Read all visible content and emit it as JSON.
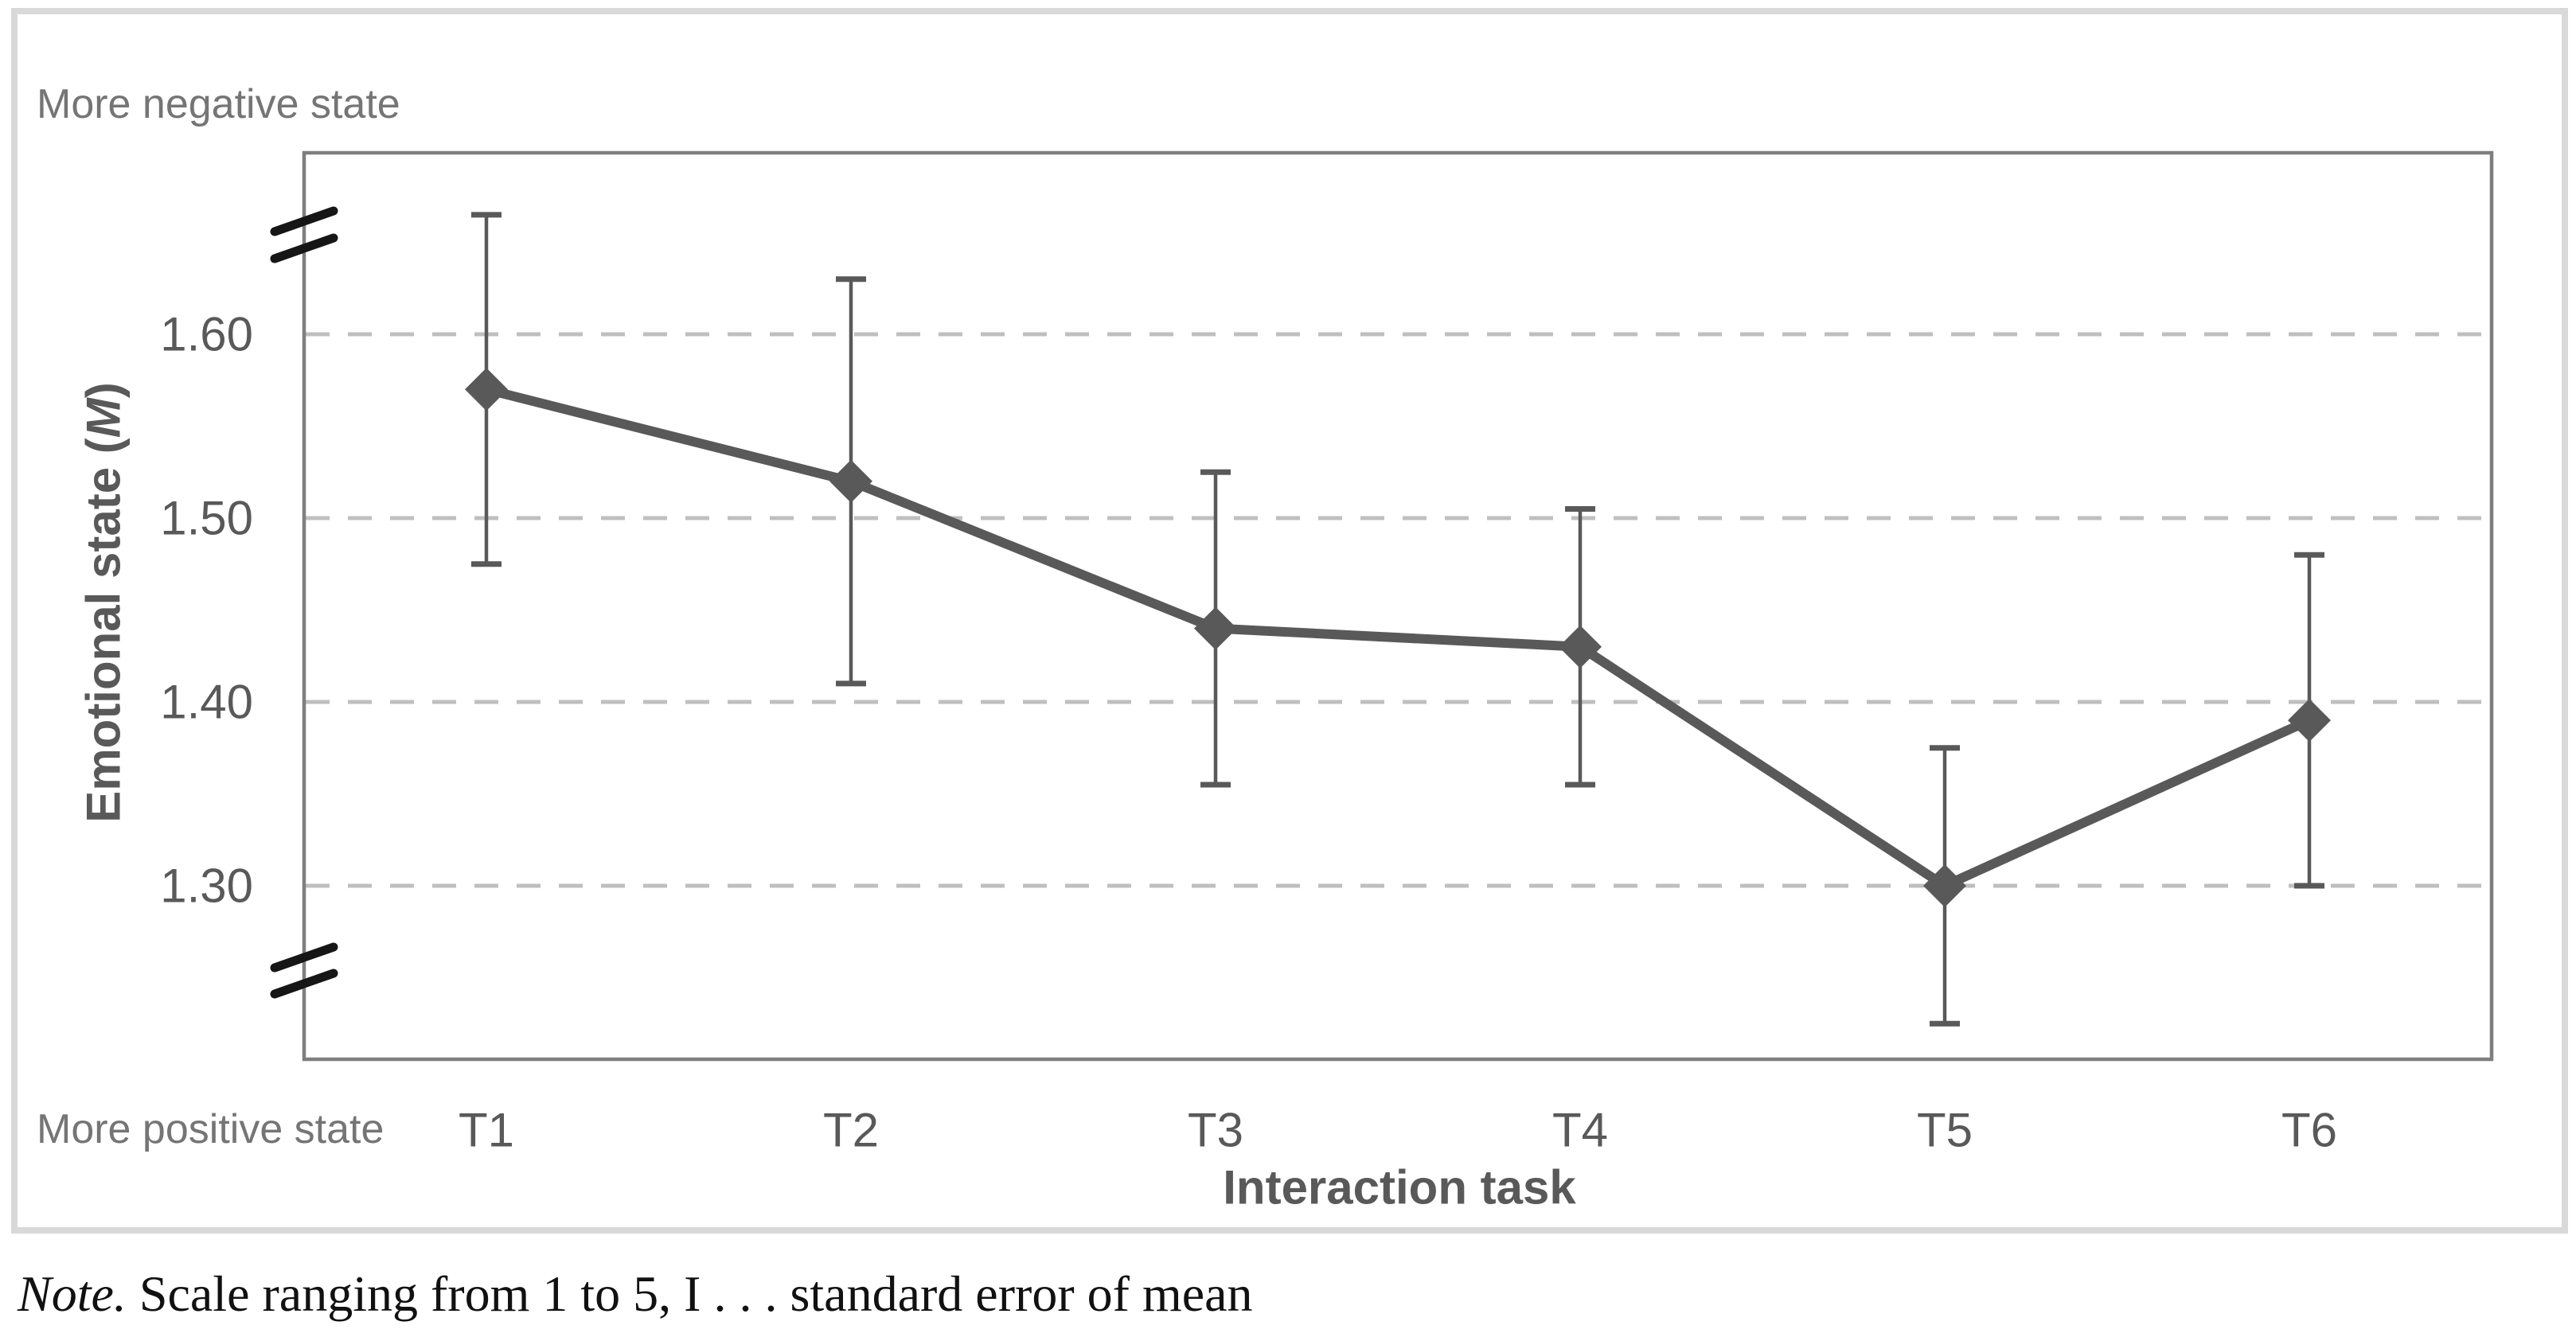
{
  "figure": {
    "card_border_color": "#d9d9d9",
    "annotations": {
      "top_left": "More negative state",
      "bottom_left": "More positive state"
    }
  },
  "chart_data": {
    "type": "line",
    "title": "",
    "categories": [
      "T1",
      "T2",
      "T3",
      "T4",
      "T5",
      "T6"
    ],
    "series": [
      {
        "name": "Emotional state (M)",
        "values": [
          1.57,
          1.52,
          1.44,
          1.43,
          1.3,
          1.39
        ],
        "std_error": [
          0.095,
          0.11,
          0.085,
          0.075,
          0.075,
          0.09
        ]
      }
    ],
    "xlabel": "Interaction task",
    "ylabel": {
      "full": "Emotional state (M)",
      "prefix": "Emotional state (",
      "emphasis": "M",
      "suffix": ")"
    },
    "ytick_labels": [
      "1.60",
      "1.50",
      "1.40",
      "1.30"
    ],
    "ytick_values": [
      1.6,
      1.5,
      1.4,
      1.3
    ],
    "ylim_displayed": [
      1.205,
      1.7
    ],
    "axis_breaks": [
      "top-of-y-axis",
      "bottom-of-y-axis"
    ],
    "grid": "horizontal-dashed",
    "legend": "none",
    "marker": "diamond",
    "colors": {
      "series": "#595959",
      "gridline": "#bfbfbf",
      "frame": "#7f7f7f",
      "break_marks": "#161616",
      "axis_text": "#595959",
      "corner_text": "#757575"
    }
  },
  "note": {
    "prefix": "Note.",
    "body": " Scale ranging from 1 to 5, I . . . standard error of mean"
  }
}
